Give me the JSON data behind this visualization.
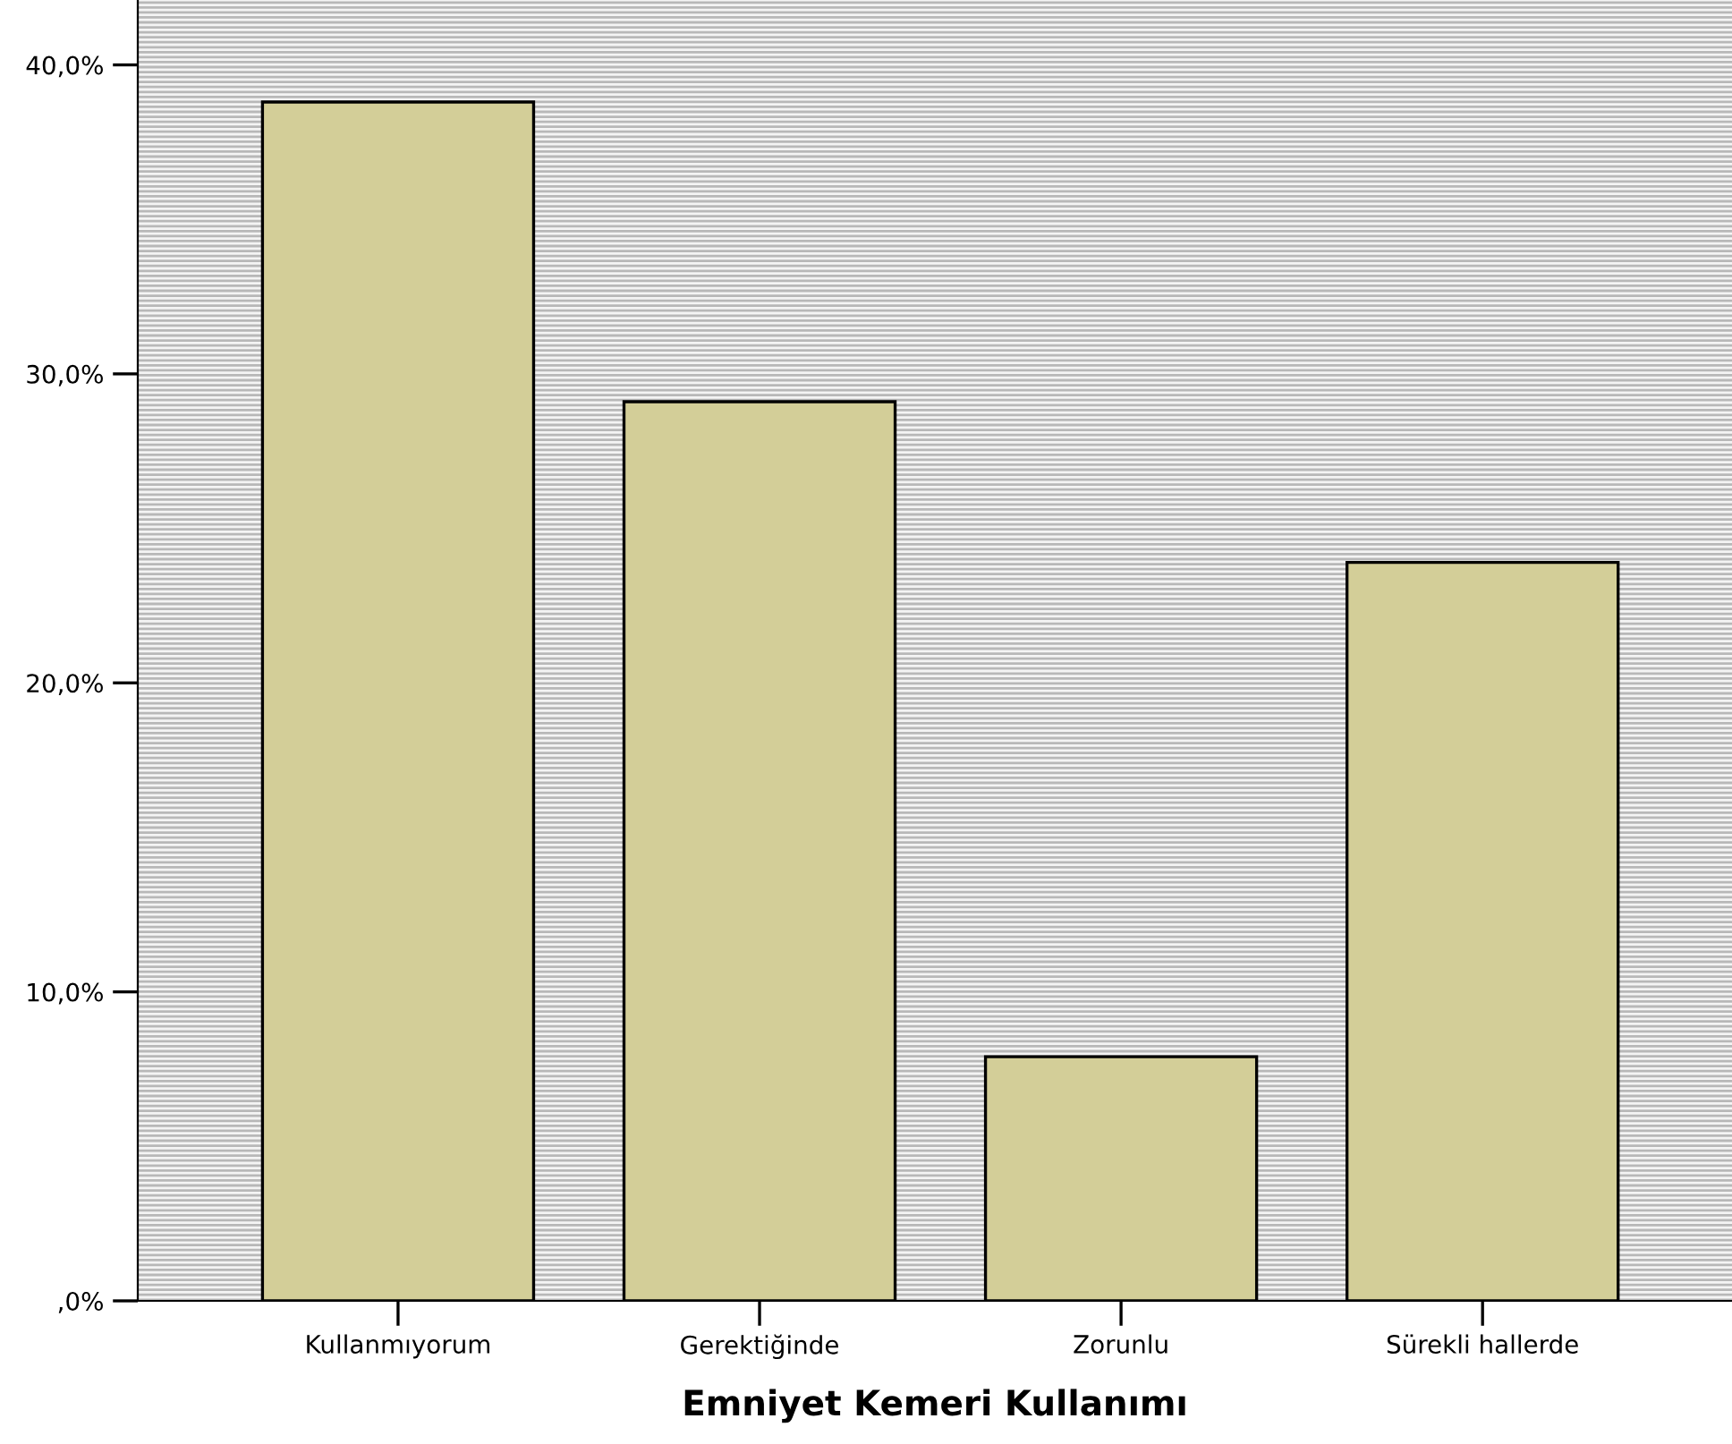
{
  "chart_data": {
    "type": "bar",
    "xlabel": "Emniyet Kemeri Kullanımı",
    "categories": [
      "Kullanmıyorum",
      "Gerektiğinde",
      "Zorunlu",
      "Sürekli hallerde"
    ],
    "values": [
      38.8,
      29.1,
      7.9,
      23.9
    ],
    "color": "#d3ce98",
    "ylim": [
      0,
      42.1
    ],
    "yticks": [
      {
        "value": 0,
        "label": ",0%"
      },
      {
        "value": 10,
        "label": "10,0%"
      },
      {
        "value": 20,
        "label": "20,0%"
      },
      {
        "value": 30,
        "label": "30,0%"
      },
      {
        "value": 40,
        "label": "40,0%"
      }
    ],
    "grid": false
  }
}
